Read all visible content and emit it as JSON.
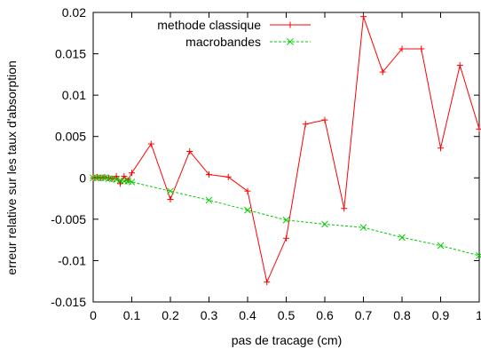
{
  "chart_data": {
    "type": "line",
    "xlabel": "pas de tracage (cm)",
    "ylabel": "erreur relative sur les taux d'absorption",
    "xlim": [
      0,
      1
    ],
    "ylim": [
      -0.015,
      0.02
    ],
    "xticks": [
      0,
      0.1,
      0.2,
      0.3,
      0.4,
      0.5,
      0.6,
      0.7,
      0.8,
      0.9,
      1
    ],
    "yticks": [
      -0.015,
      -0.01,
      -0.005,
      0,
      0.005,
      0.01,
      0.015,
      0.02
    ],
    "xtick_labels": [
      "0",
      "0.1",
      "0.2",
      "0.3",
      "0.4",
      "0.5",
      "0.6",
      "0.7",
      "0.8",
      "0.9",
      "1"
    ],
    "ytick_labels": [
      "-0.015",
      "-0.01",
      "-0.005",
      "0",
      "0.005",
      "0.01",
      "0.015",
      "0.02"
    ],
    "grid": false,
    "legend_position": "top-right",
    "series": [
      {
        "name": "methode classique",
        "color": "#ff0000",
        "marker": "plus",
        "x": [
          0,
          0.01,
          0.02,
          0.03,
          0.04,
          0.05,
          0.06,
          0.07,
          0.08,
          0.09,
          0.1,
          0.15,
          0.2,
          0.25,
          0.3,
          0.35,
          0.4,
          0.45,
          0.5,
          0.55,
          0.6,
          0.65,
          0.7,
          0.75,
          0.8,
          0.85,
          0.9,
          0.95,
          1.0
        ],
        "y": [
          0,
          0.0001,
          0.0,
          0.0001,
          0.0,
          -0.0001,
          0.0002,
          -0.0007,
          0.0002,
          -0.0003,
          0.0006,
          0.0041,
          -0.0026,
          0.0032,
          0.0004,
          0.0001,
          -0.0016,
          -0.0126,
          -0.0073,
          0.0065,
          0.007,
          -0.0037,
          0.0195,
          0.0128,
          0.0156,
          0.0156,
          0.0036,
          0.0136,
          0.0059
        ]
      },
      {
        "name": "macrobandes",
        "color": "#00cc00",
        "marker": "cross",
        "x": [
          0,
          0.01,
          0.02,
          0.03,
          0.04,
          0.05,
          0.06,
          0.07,
          0.08,
          0.09,
          0.1,
          0.2,
          0.3,
          0.4,
          0.5,
          0.6,
          0.7,
          0.8,
          0.9,
          1.0
        ],
        "y": [
          0,
          0.0,
          0.0,
          0.0,
          -0.0001,
          -0.0001,
          -0.0002,
          -0.0003,
          -0.0004,
          -0.0004,
          -0.0005,
          -0.0016,
          -0.0027,
          -0.0039,
          -0.0051,
          -0.0056,
          -0.006,
          -0.0072,
          -0.0082,
          -0.0094
        ]
      }
    ]
  }
}
